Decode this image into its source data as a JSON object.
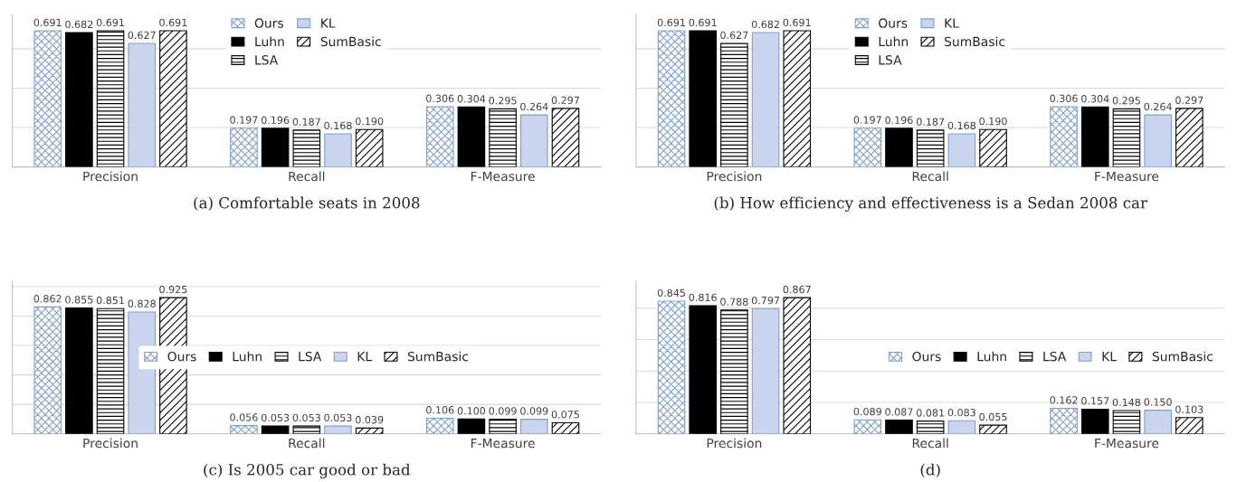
{
  "chart_data": [
    {
      "type": "bar",
      "title": "(a) Comfortable seats in 2008",
      "categories": [
        "Precision",
        "Recall",
        "F-Measure"
      ],
      "grid": "y",
      "legend": "top",
      "tick_labels": "x",
      "series": [
        {
          "name": "Ours",
          "color": "#7f9fcf",
          "values": [
            0.691,
            0.197,
            0.306
          ],
          "value_labels": [
            "0.691",
            "0.197",
            "0.306"
          ]
        },
        {
          "name": "Luhn",
          "color": "#000000",
          "values": [
            0.682,
            0.196,
            0.304
          ],
          "value_labels": [
            "0.682",
            "0.196",
            "0.304"
          ]
        },
        {
          "name": "LSA",
          "color": "#000000",
          "values": [
            0.691,
            0.187,
            0.295
          ],
          "value_labels": [
            "0.691",
            "0.187",
            "0.295"
          ]
        },
        {
          "name": "KL",
          "color": "#c9d5ee",
          "values": [
            0.627,
            0.168,
            0.264
          ],
          "value_labels": [
            "0.627",
            "0.168",
            "0.264"
          ]
        },
        {
          "name": "SumBasic",
          "color": "#000000",
          "values": [
            0.691,
            0.19,
            0.297
          ],
          "value_labels": [
            "0.691",
            "0.190",
            "0.297"
          ]
        }
      ]
    },
    {
      "type": "bar",
      "title": "(b) How efficiency and effectiveness is a Sedan 2008 car",
      "categories": [
        "Precision",
        "Recall",
        "F-Measure"
      ],
      "grid": "y",
      "legend": "top",
      "tick_labels": "x",
      "series": [
        {
          "name": "Ours",
          "color": "#7f9fcf",
          "values": [
            0.691,
            0.197,
            0.306
          ],
          "value_labels": [
            "0.691",
            "0.197",
            "0.306"
          ]
        },
        {
          "name": "Luhn",
          "color": "#000000",
          "values": [
            0.691,
            0.196,
            0.304
          ],
          "value_labels": [
            "0.691",
            "0.196",
            "0.304"
          ]
        },
        {
          "name": "LSA",
          "color": "#000000",
          "values": [
            0.627,
            0.187,
            0.295
          ],
          "value_labels": [
            "0.627",
            "0.187",
            "0.295"
          ]
        },
        {
          "name": "KL",
          "color": "#c9d5ee",
          "values": [
            0.682,
            0.168,
            0.264
          ],
          "value_labels": [
            "0.682",
            "0.168",
            "0.264"
          ]
        },
        {
          "name": "SumBasic",
          "color": "#000000",
          "values": [
            0.691,
            0.19,
            0.297
          ],
          "value_labels": [
            "0.691",
            "0.190",
            "0.297"
          ]
        }
      ]
    },
    {
      "type": "bar",
      "title": "(c) Is 2005 car good or bad",
      "categories": [
        "Precision",
        "Recall",
        "F-Measure"
      ],
      "grid": "y",
      "legend": "center",
      "tick_labels": "x",
      "series": [
        {
          "name": "Ours",
          "color": "#7f9fcf",
          "values": [
            0.862,
            0.056,
            0.106
          ],
          "value_labels": [
            "0.862",
            "0.056",
            "0.106"
          ]
        },
        {
          "name": "Luhn",
          "color": "#000000",
          "values": [
            0.855,
            0.053,
            0.1
          ],
          "value_labels": [
            "0.855",
            "0.053",
            "0.100"
          ]
        },
        {
          "name": "LSA",
          "color": "#000000",
          "values": [
            0.851,
            0.053,
            0.099
          ],
          "value_labels": [
            "0.851",
            "0.053",
            "0.099"
          ]
        },
        {
          "name": "KL",
          "color": "#c9d5ee",
          "values": [
            0.828,
            0.053,
            0.099
          ],
          "value_labels": [
            "0.828",
            "0.053",
            "0.099"
          ]
        },
        {
          "name": "SumBasic",
          "color": "#000000",
          "values": [
            0.925,
            0.039,
            0.075
          ],
          "value_labels": [
            "0.925",
            "0.039",
            "0.075"
          ]
        }
      ]
    },
    {
      "type": "bar",
      "title": "(d)",
      "categories": [
        "Precision",
        "Recall",
        "F-Measure"
      ],
      "grid": "y",
      "legend": "right",
      "tick_labels": "x",
      "series": [
        {
          "name": "Ours",
          "color": "#7f9fcf",
          "values": [
            0.845,
            0.089,
            0.162
          ],
          "value_labels": [
            "0.845",
            "0.089",
            "0.162"
          ]
        },
        {
          "name": "Luhn",
          "color": "#000000",
          "values": [
            0.816,
            0.087,
            0.157
          ],
          "value_labels": [
            "0.816",
            "0.087",
            "0.157"
          ]
        },
        {
          "name": "LSA",
          "color": "#000000",
          "values": [
            0.788,
            0.081,
            0.148
          ],
          "value_labels": [
            "0.788",
            "0.081",
            "0.148"
          ]
        },
        {
          "name": "KL",
          "color": "#c9d5ee",
          "values": [
            0.797,
            0.083,
            0.15
          ],
          "value_labels": [
            "0.797",
            "0.083",
            "0.150"
          ]
        },
        {
          "name": "SumBasic",
          "color": "#000000",
          "values": [
            0.867,
            0.055,
            0.103
          ],
          "value_labels": [
            "0.867",
            "0.055",
            "0.103"
          ]
        }
      ]
    }
  ]
}
